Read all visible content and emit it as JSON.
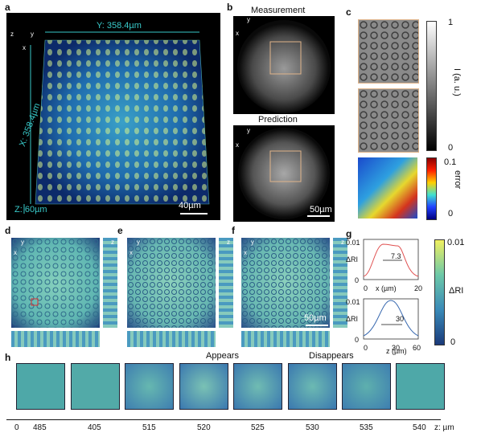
{
  "panels": {
    "a": {
      "label": "a",
      "y_dim": "Y: 358.4µm",
      "x_dim": "X: 358.4µm",
      "z_dim": "Z: 60µm",
      "scale": "40µm",
      "axes": {
        "z": "z",
        "y": "y",
        "x": "x"
      }
    },
    "b": {
      "label": "b",
      "measurement": "Measurement",
      "prediction": "Prediction",
      "scale": "50µm",
      "axes": {
        "y": "y",
        "x": "x"
      }
    },
    "c": {
      "label": "c",
      "intensity_max": "1",
      "intensity_min": "0",
      "intensity_label": "I (a. u.)",
      "error_max": "0.1",
      "error_min": "0",
      "error_label": "error"
    },
    "d": {
      "label": "d",
      "axes": {
        "y": "y",
        "x": "x",
        "z": "z"
      }
    },
    "e": {
      "label": "e",
      "axes": {
        "y": "y",
        "x": "x",
        "z": "z"
      }
    },
    "f": {
      "label": "f",
      "scale": "50µm",
      "axes": {
        "y": "y",
        "x": "x",
        "z": "z"
      }
    },
    "g": {
      "label": "g",
      "cbar_max": "0.01",
      "cbar_min": "0",
      "cbar_label": "ΔRI",
      "plot1": {
        "ymax": "0.01",
        "ymin": "0",
        "ylabel": "ΔRI",
        "xlabel": "x (µm)",
        "xticks": [
          "0",
          "20"
        ],
        "annotation": "7.3"
      },
      "plot2": {
        "ymax": "0.01",
        "ymin": "0",
        "ylabel": "ΔRI",
        "xlabel": "z (µm)",
        "xticks": [
          "0",
          "30",
          "60"
        ],
        "annotation": "30"
      }
    },
    "h": {
      "label": "h",
      "appears": "Appears",
      "disappears": "Disappears",
      "ticks": [
        "0",
        "485",
        "405",
        "515",
        "520",
        "525",
        "530",
        "535",
        "540"
      ],
      "axis_label": "z: µm"
    }
  },
  "colors": {
    "cyan_text": "#38c9c9",
    "bg_dark": "#000000",
    "ri_low": "#1a3a7a",
    "ri_high": "#f0f060"
  }
}
